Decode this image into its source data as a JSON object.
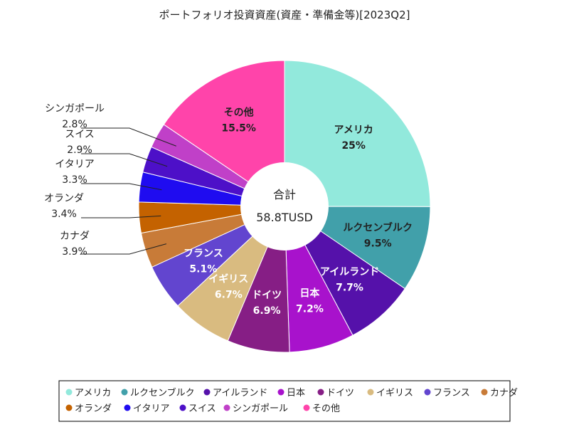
{
  "chart_data": {
    "type": "pie",
    "title": "ポートフォリオ投資資産(資産・準備金等)[2023Q2]",
    "center_label": "合計",
    "center_value": "58.8TUSD",
    "slices": [
      {
        "name": "アメリカ",
        "value": 25,
        "label": "25%",
        "color": "#92e9dc"
      },
      {
        "name": "ルクセンブルク",
        "value": 9.5,
        "label": "9.5%",
        "color": "#41a0aa"
      },
      {
        "name": "アイルランド",
        "value": 7.7,
        "label": "7.7%",
        "color": "#5511aa"
      },
      {
        "name": "日本",
        "value": 7.2,
        "label": "7.2%",
        "color": "#a812cc"
      },
      {
        "name": "ドイツ",
        "value": 6.9,
        "label": "6.9%",
        "color": "#861e85"
      },
      {
        "name": "イギリス",
        "value": 6.7,
        "label": "6.7%",
        "color": "#d9bb80"
      },
      {
        "name": "フランス",
        "value": 5.1,
        "label": "5.1%",
        "color": "#6245cf"
      },
      {
        "name": "カナダ",
        "value": 3.9,
        "label": "3.9%",
        "color": "#c87b38"
      },
      {
        "name": "オランダ",
        "value": 3.4,
        "label": "3.4%",
        "color": "#c46200"
      },
      {
        "name": "イタリア",
        "value": 3.3,
        "label": "3.3%",
        "color": "#1f0cf0"
      },
      {
        "name": "スイス",
        "value": 2.9,
        "label": "2.9%",
        "color": "#4d10c8"
      },
      {
        "name": "シンガポール",
        "value": 2.8,
        "label": "2.8%",
        "color": "#c040c8"
      },
      {
        "name": "その他",
        "value": 15.5,
        "label": "15.5%",
        "color": "#ff44aa"
      }
    ],
    "legend_position": "bottom"
  }
}
